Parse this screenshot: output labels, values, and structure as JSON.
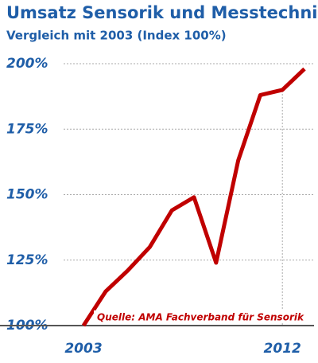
{
  "chart_data": {
    "type": "line",
    "title": "Umsatz Sensorik und Messtechnik",
    "subtitle": "Vergleich mit 2003 (Index 100%)",
    "annotation": "Quelle: AMA Fachverband für Sensorik",
    "x": [
      2003,
      2004,
      2005,
      2006,
      2007,
      2008,
      2009,
      2010,
      2011,
      2012,
      2013
    ],
    "series": [
      {
        "color": "#c00000",
        "values": [
          100,
          113,
          121,
          130,
          144,
          149,
          124,
          163,
          188,
          190,
          198
        ]
      }
    ],
    "xlim": [
      2002.1,
      2013
    ],
    "xticks": [
      2003,
      2012
    ],
    "ylim": [
      100,
      200
    ],
    "yticks": [
      {
        "value": 100,
        "label": "100%"
      },
      {
        "value": 125,
        "label": "125%"
      },
      {
        "value": 150,
        "label": "150%"
      },
      {
        "value": 175,
        "label": "175%"
      },
      {
        "value": 200,
        "label": "200%"
      }
    ],
    "grid": true
  }
}
